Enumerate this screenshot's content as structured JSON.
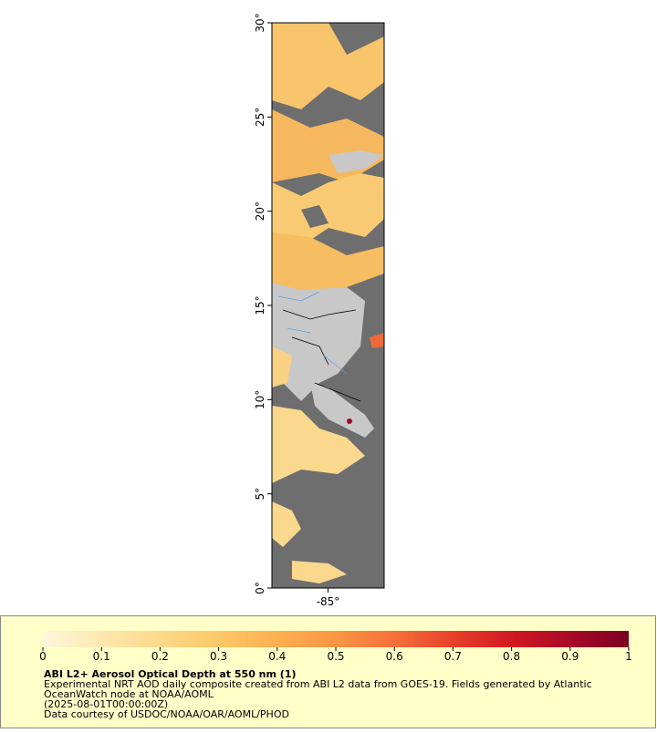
{
  "map": {
    "ylim": [
      0,
      30
    ],
    "yticks": [
      {
        "value": 0,
        "label": "0°"
      },
      {
        "value": 5,
        "label": "5°"
      },
      {
        "value": 10,
        "label": "10°"
      },
      {
        "value": 15,
        "label": "15°"
      },
      {
        "value": 20,
        "label": "20°"
      },
      {
        "value": 25,
        "label": "25°"
      },
      {
        "value": 30,
        "label": "30°"
      }
    ],
    "xlim": [
      -88,
      -82
    ],
    "xticks": [
      {
        "value": -85,
        "label": "-85°"
      }
    ]
  },
  "colorbar": {
    "range": [
      0,
      1
    ],
    "ticks": [
      0,
      0.1,
      0.2,
      0.3,
      0.4,
      0.5,
      0.6,
      0.7,
      0.8,
      0.9,
      1
    ],
    "colors": [
      "#fff6dc",
      "#fee8b0",
      "#fdd98a",
      "#fdc868",
      "#fcb050",
      "#fb9644",
      "#f5703a",
      "#e8402c",
      "#d21820",
      "#a80a28",
      "#7c0020"
    ]
  },
  "caption": {
    "title": "ABI L2+ Aerosol Optical Depth at 550 nm (1)",
    "lines": [
      "Experimental NRT AOD daily composite created from ABI L2 data from GOES-19. Fields generated by Atlantic",
      "OceanWatch node at NOAA/AOML",
      "(2025-08-01T00:00:00Z)",
      "Data courtesy of USDOC/NOAA/OAR/AOML/PHOD"
    ]
  }
}
